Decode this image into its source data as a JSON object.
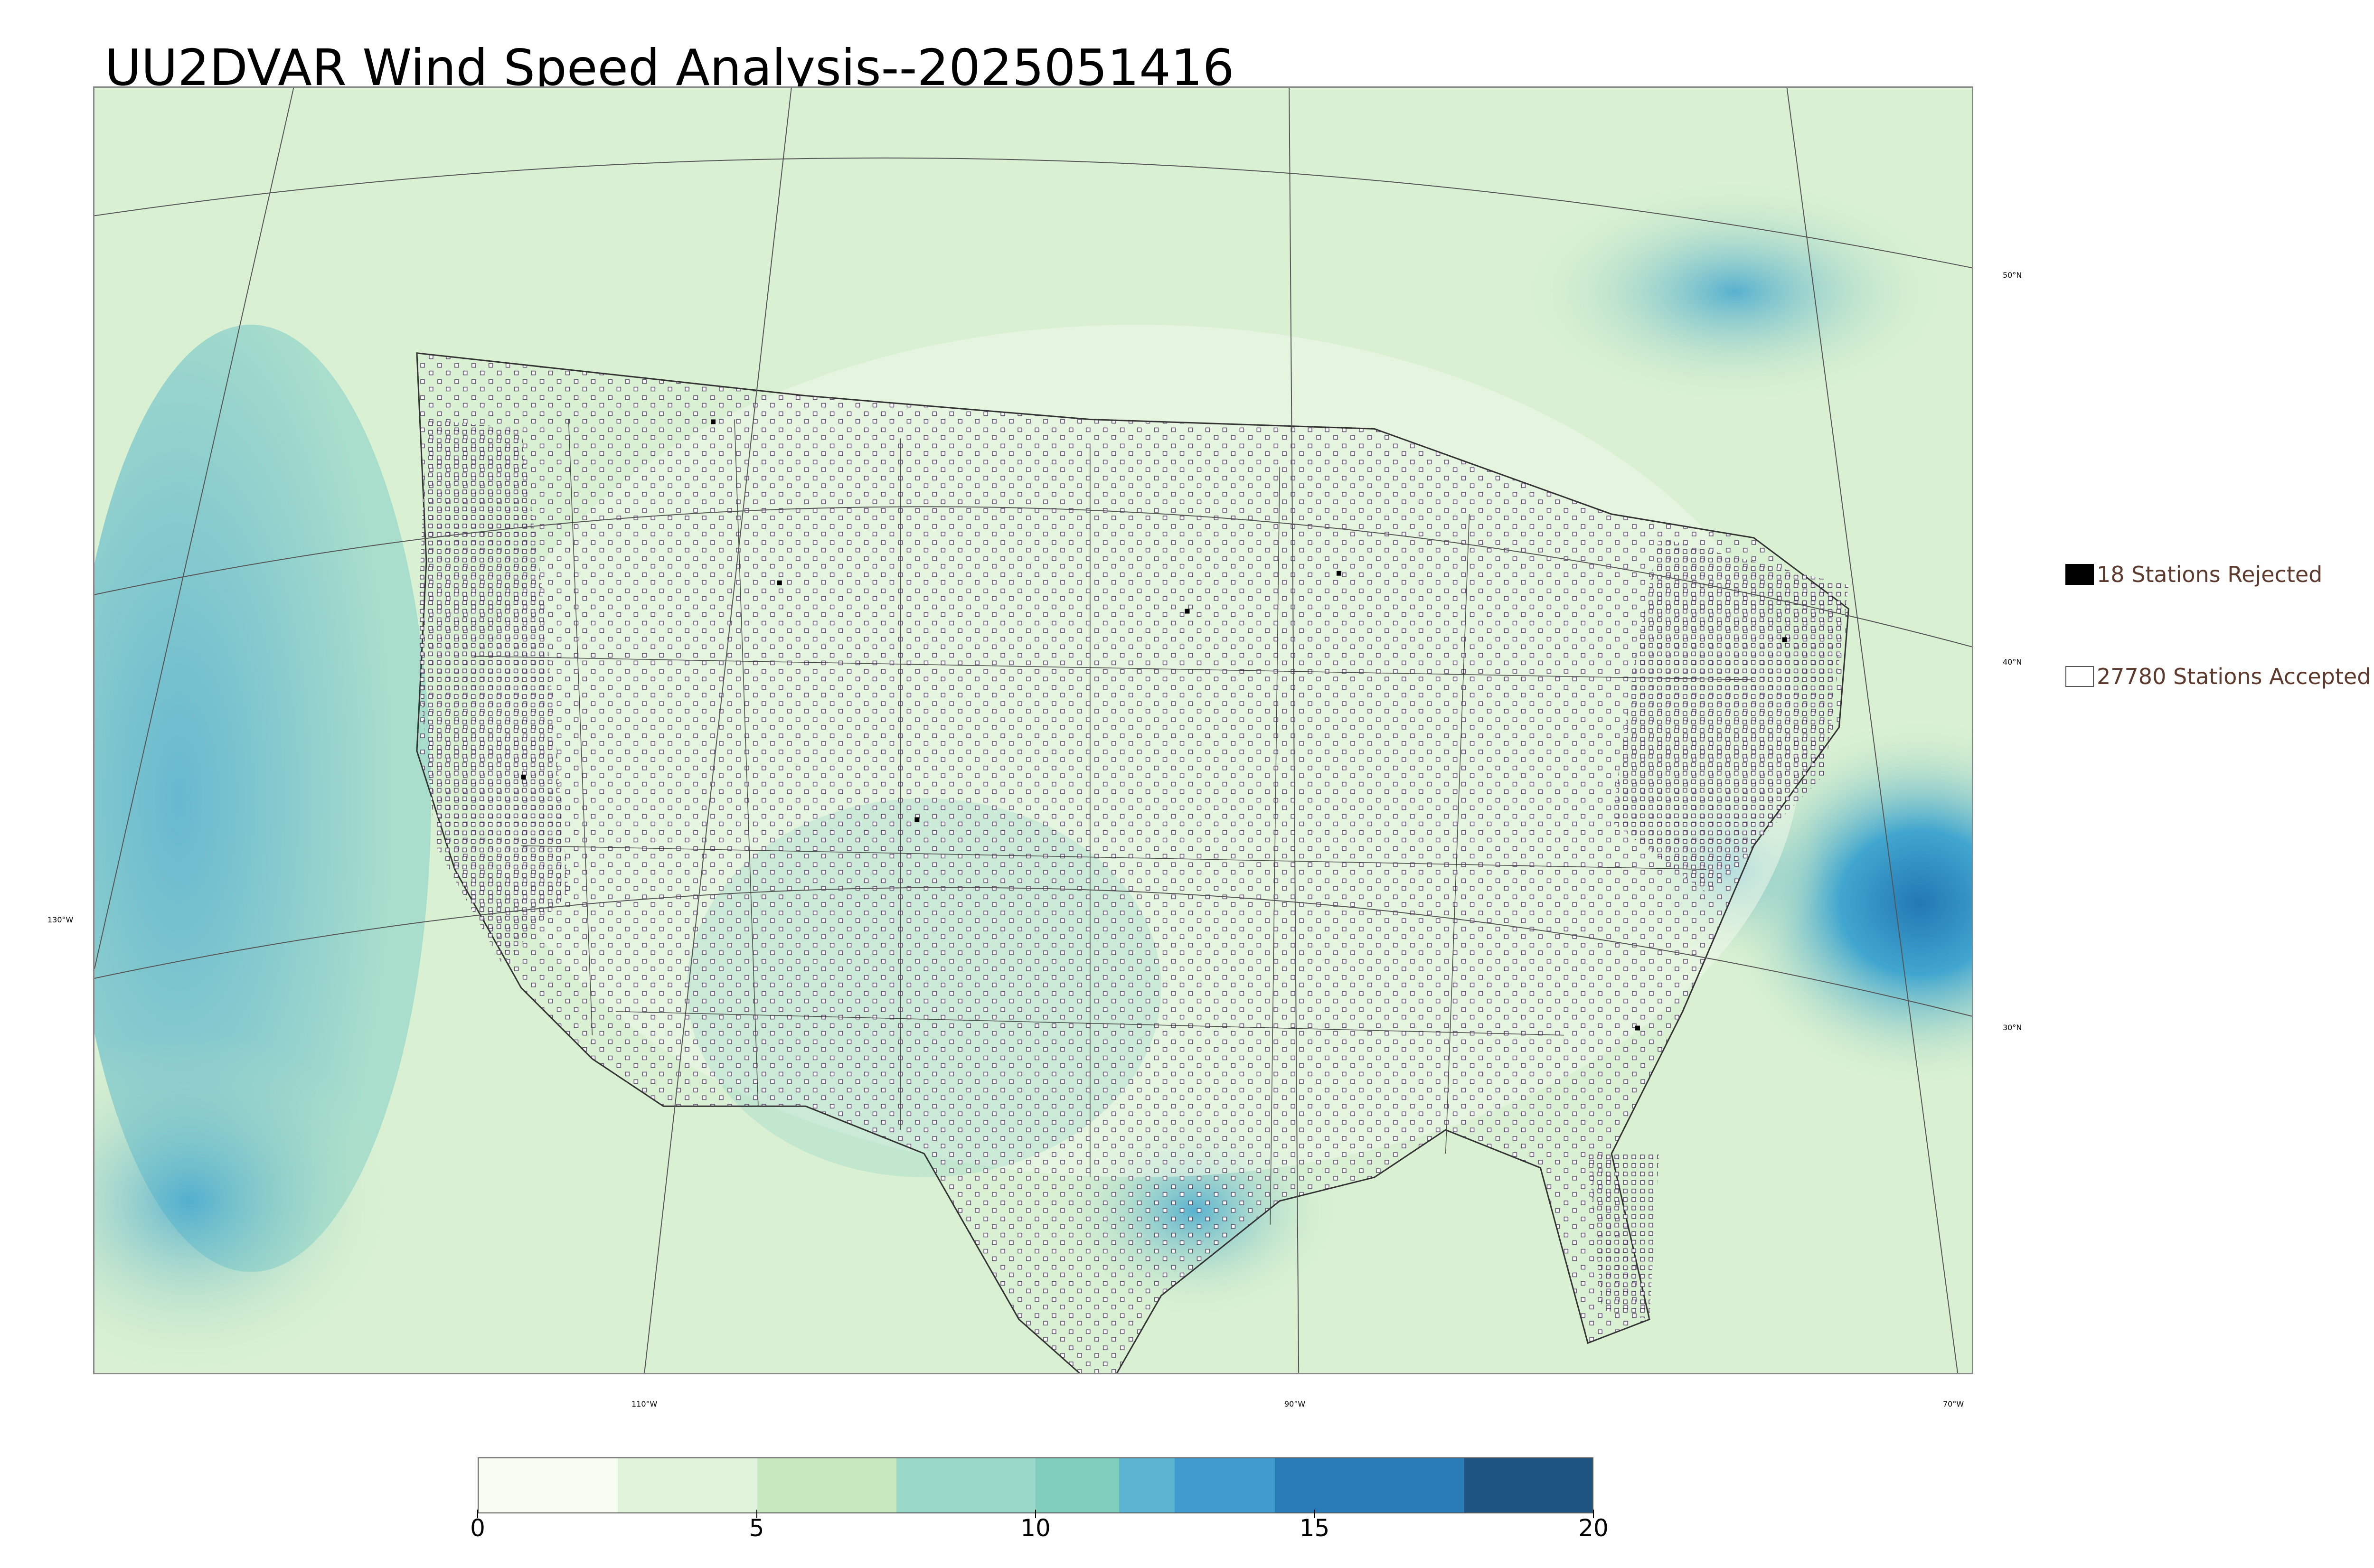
{
  "title": "UU2DVAR Wind Speed Analysis--2025051416",
  "map": {
    "lat_labels": [
      "50°N",
      "40°N",
      "30°N"
    ],
    "lon_labels": [
      "130°W",
      "110°W",
      "90°W",
      "70°W"
    ],
    "colors": {
      "land_base": "#d9f0d3",
      "land_light": "#eef8ea",
      "ocean_mid": "#7fcdbb",
      "ocean_high": "#41a6cf",
      "ocean_max": "#2378b4",
      "boundary": "#333333",
      "station_accepted": "#ffffff",
      "station_rejected": "#000000"
    }
  },
  "legend": {
    "rejected": "18 Stations Rejected",
    "accepted": "27780 Stations Accepted"
  },
  "colorbar": {
    "ticks": [
      "0",
      "5",
      "10",
      "15",
      "20"
    ],
    "min": 0,
    "max": 20,
    "bins": [
      {
        "from": 0,
        "to": 2.5,
        "color": "#f7fcf0"
      },
      {
        "from": 2.5,
        "to": 5,
        "color": "#e0f3db"
      },
      {
        "from": 5,
        "to": 7.5,
        "color": "#c7e9c0"
      },
      {
        "from": 7.5,
        "to": 10,
        "color": "#99d8c9"
      },
      {
        "from": 10,
        "to": 11.5,
        "color": "#7fcdbb"
      },
      {
        "from": 11.5,
        "to": 12.5,
        "color": "#5ab4d2"
      },
      {
        "from": 12.5,
        "to": 14.3,
        "color": "#3f9ccd"
      },
      {
        "from": 14.3,
        "to": 17.7,
        "color": "#2a7cb8"
      },
      {
        "from": 17.7,
        "to": 20,
        "color": "#1d5580"
      }
    ]
  }
}
